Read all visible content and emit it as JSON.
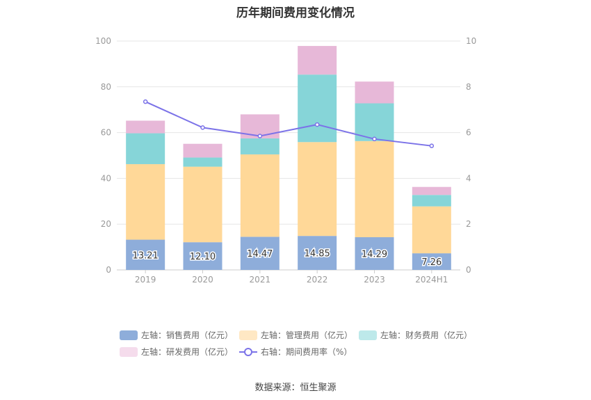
{
  "title": "历年期间费用变化情况",
  "source": "数据来源：恒生聚源",
  "chart_data": {
    "type": "bar",
    "stacked": true,
    "categories": [
      "2019",
      "2020",
      "2021",
      "2022",
      "2023",
      "2024H1"
    ],
    "series": [
      {
        "name": "左轴：销售费用（亿元）",
        "axis": "left",
        "color": "#8eadda",
        "legend_color": "#8eadda",
        "values": [
          13.21,
          12.1,
          14.47,
          14.85,
          14.29,
          7.26
        ],
        "show_labels": true
      },
      {
        "name": "左轴：管理费用（亿元）",
        "axis": "left",
        "color": "#ffd898",
        "legend_color": "#ffe8c4",
        "values": [
          33.0,
          33.0,
          36.0,
          41.0,
          42.0,
          20.5
        ]
      },
      {
        "name": "左轴：财务费用（亿元）",
        "axis": "left",
        "color": "#86d5d8",
        "legend_color": "#bde9ea",
        "values": [
          13.5,
          4.0,
          7.0,
          29.5,
          16.5,
          5.0
        ]
      },
      {
        "name": "左轴：研发费用（亿元）",
        "axis": "left",
        "color": "#e7b8d8",
        "legend_color": "#f5dcec",
        "values": [
          5.5,
          6.0,
          10.5,
          12.5,
          9.5,
          3.5
        ]
      }
    ],
    "line_series": {
      "name": "右轴：期间费用率（%）",
      "axis": "right",
      "color": "#7b72e8",
      "values": [
        7.35,
        6.22,
        5.85,
        6.35,
        5.72,
        5.42
      ]
    },
    "y_left": {
      "min": 0,
      "max": 100,
      "ticks": [
        "0",
        "20",
        "40",
        "60",
        "80",
        "100"
      ]
    },
    "y_right": {
      "min": 0,
      "max": 10,
      "ticks": [
        "0",
        "2",
        "4",
        "6",
        "8",
        "10"
      ]
    },
    "grid": true,
    "legend_position": "bottom"
  }
}
